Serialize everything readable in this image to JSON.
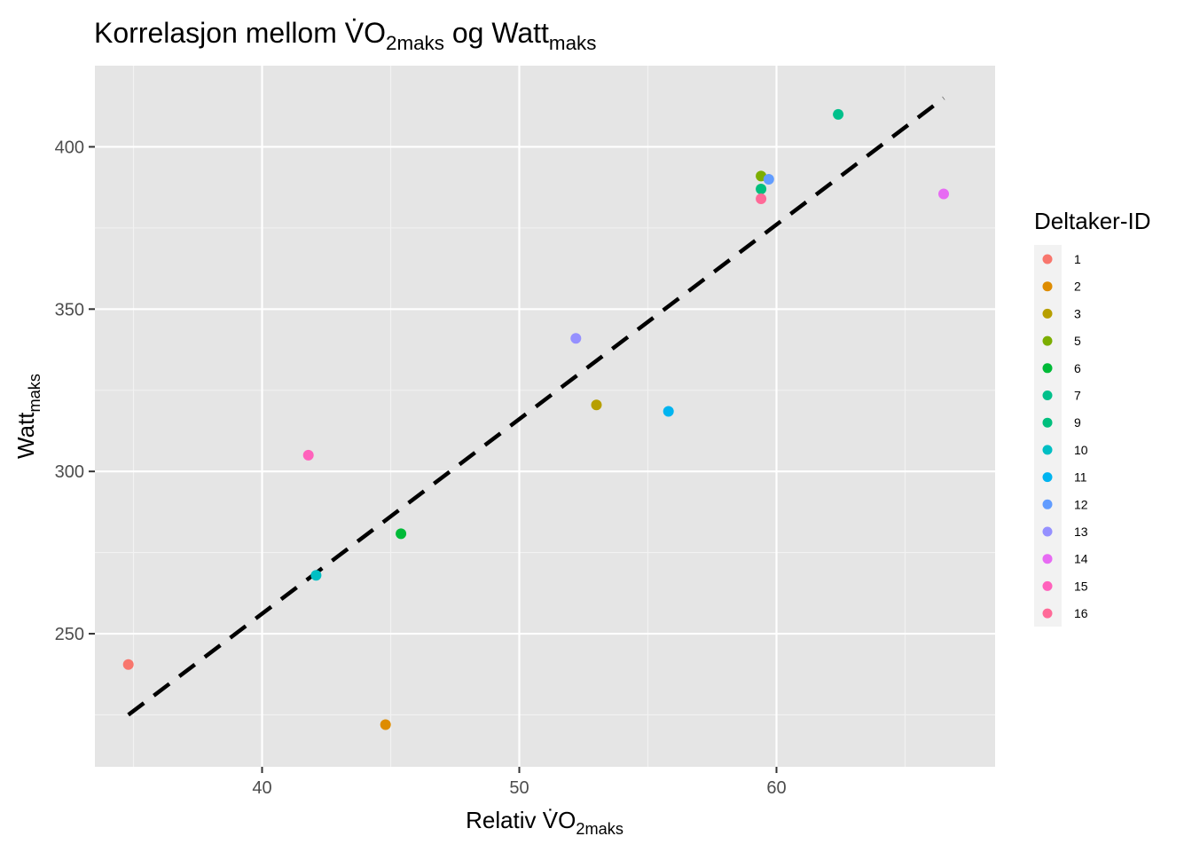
{
  "chart_data": {
    "type": "scatter",
    "title": {
      "main": "Korrelasjon mellom V̇O",
      "sub1": "2maks",
      "mid": " og Watt",
      "sub2": "maks"
    },
    "xlabel": {
      "main": "Relativ V̇O",
      "sub": "2maks"
    },
    "ylabel": {
      "main": "Watt",
      "sub": "maks"
    },
    "xlim": [
      33.5,
      68.5
    ],
    "ylim": [
      209,
      425
    ],
    "x_ticks": [
      40,
      50,
      60
    ],
    "y_ticks": [
      250,
      300,
      350,
      400
    ],
    "x_tick_labels": [
      "40",
      "50",
      "60"
    ],
    "y_tick_labels": [
      "250",
      "300",
      "350",
      "400"
    ],
    "grid": true,
    "legend": {
      "title": "Deltaker-ID",
      "position": "right"
    },
    "series": [
      {
        "name": "1",
        "color": "#F8766D",
        "x": 34.8,
        "y": 240.5
      },
      {
        "name": "2",
        "color": "#DE8C00",
        "x": 44.8,
        "y": 222
      },
      {
        "name": "3",
        "color": "#B79F00",
        "x": 53.0,
        "y": 320.5
      },
      {
        "name": "5",
        "color": "#7CAE00",
        "x": 59.4,
        "y": 391
      },
      {
        "name": "6",
        "color": "#00BA38",
        "x": 45.4,
        "y": 280.8
      },
      {
        "name": "7",
        "color": "#00C08B",
        "x": 62.4,
        "y": 410
      },
      {
        "name": "9",
        "color": "#00BF7D",
        "x": 59.4,
        "y": 387
      },
      {
        "name": "10",
        "color": "#00BFC4",
        "x": 42.1,
        "y": 268
      },
      {
        "name": "11",
        "color": "#00B4F0",
        "x": 55.8,
        "y": 318.5
      },
      {
        "name": "12",
        "color": "#619CFF",
        "x": 59.7,
        "y": 390
      },
      {
        "name": "13",
        "color": "#9590FF",
        "x": 52.2,
        "y": 341
      },
      {
        "name": "14",
        "color": "#E76BF3",
        "x": 66.5,
        "y": 385.5
      },
      {
        "name": "15",
        "color": "#FF62BC",
        "x": 41.8,
        "y": 305
      },
      {
        "name": "16",
        "color": "#FF6A98",
        "x": 59.4,
        "y": 384
      }
    ],
    "trendline": {
      "style": "dashed",
      "color": "#000000",
      "x": [
        34.8,
        66.5
      ],
      "y": [
        225,
        415
      ]
    }
  }
}
